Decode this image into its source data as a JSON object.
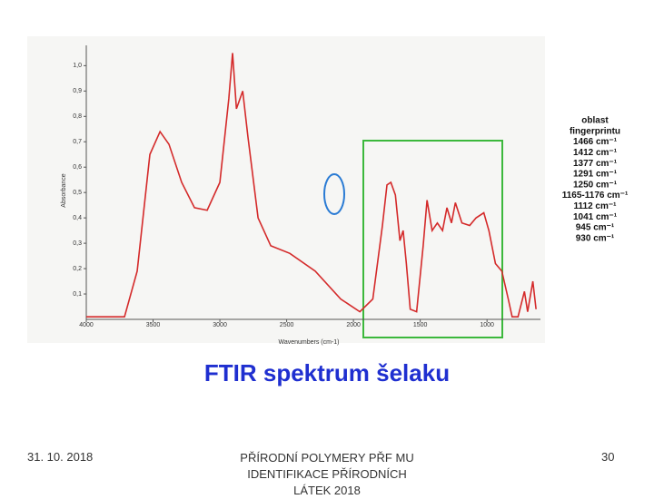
{
  "chart_data": {
    "type": "line",
    "title": "FTIR spektrum šelaku",
    "x_label": "Wavenumbers (cm-1)",
    "y_label": "Absorbance",
    "x": [
      4000,
      3714,
      3619,
      3524,
      3448,
      3381,
      3286,
      3190,
      3095,
      3000,
      2933,
      2905,
      2876,
      2829,
      2790,
      2714,
      2619,
      2476,
      2286,
      2095,
      1952,
      1855,
      1783,
      1749,
      1720,
      1686,
      1652,
      1628,
      1604,
      1575,
      1527,
      1478,
      1449,
      1411,
      1372,
      1333,
      1300,
      1266,
      1237,
      1188,
      1130,
      1082,
      1024,
      986,
      937,
      889,
      841,
      812,
      768,
      720,
      696,
      657,
      633
    ],
    "series": [
      {
        "name": "Absorbance",
        "color": "#d42a2a",
        "values": [
          0.01,
          0.01,
          0.19,
          0.65,
          0.74,
          0.69,
          0.54,
          0.44,
          0.43,
          0.54,
          0.87,
          1.05,
          0.83,
          0.9,
          0.72,
          0.4,
          0.29,
          0.26,
          0.19,
          0.08,
          0.03,
          0.08,
          0.37,
          0.53,
          0.54,
          0.49,
          0.31,
          0.35,
          0.22,
          0.04,
          0.03,
          0.29,
          0.47,
          0.35,
          0.38,
          0.35,
          0.44,
          0.38,
          0.46,
          0.38,
          0.37,
          0.4,
          0.42,
          0.35,
          0.22,
          0.19,
          0.08,
          0.01,
          0.01,
          0.11,
          0.03,
          0.15,
          0.04
        ]
      }
    ],
    "xlim": [
      4000,
      600
    ],
    "xticks": [
      4000,
      3500,
      3000,
      2500,
      2000,
      1500,
      1000
    ],
    "ylim": [
      0,
      1.08
    ],
    "yticks": [
      {
        "value": 0.1,
        "label": "0,1"
      },
      {
        "value": 0.2,
        "label": "0,2"
      },
      {
        "value": 0.3,
        "label": "0,3"
      },
      {
        "value": 0.4,
        "label": "0,4"
      },
      {
        "value": 0.5,
        "label": "0,5"
      },
      {
        "value": 0.6,
        "label": "0,6"
      },
      {
        "value": 0.7,
        "label": "0,7"
      },
      {
        "value": 0.8,
        "label": "0,8"
      },
      {
        "value": 0.9,
        "label": "0,9"
      },
      {
        "value": 1.0,
        "label": "1,0"
      }
    ],
    "annotations": [
      "oblast",
      "fingerprintu",
      "1466 cm⁻¹",
      "1412 cm⁻¹",
      "1377 cm⁻¹",
      "1291 cm⁻¹",
      "1250 cm⁻¹",
      "1165-1176 cm⁻¹",
      "1112 cm⁻¹",
      "1041 cm⁻¹",
      "945 cm⁻¹",
      "930 cm⁻¹"
    ]
  },
  "footer": {
    "date": "31. 10. 2018",
    "center": "PŘÍRODNÍ POLYMERY PŘF MU IDENTIFIKACE PŘÍRODNÍCH LÁTEK 2018",
    "page": "30"
  }
}
